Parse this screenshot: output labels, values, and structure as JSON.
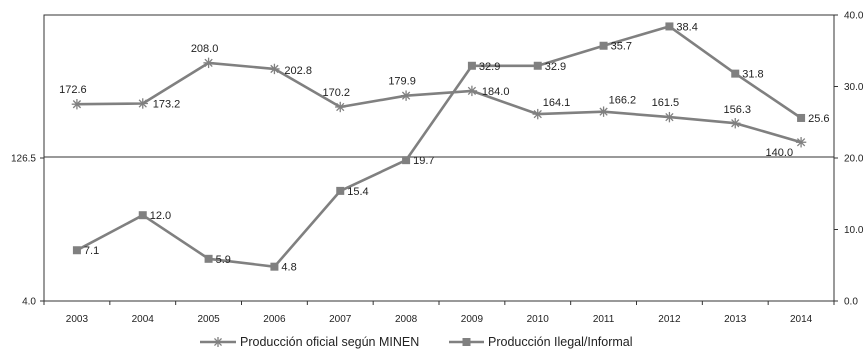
{
  "chart_data": {
    "type": "line",
    "title": "",
    "xlabel": "",
    "ylabel": "",
    "categories": [
      "2003",
      "2004",
      "2005",
      "2006",
      "2007",
      "2008",
      "2009",
      "2010",
      "2011",
      "2012",
      "2013",
      "2014"
    ],
    "y_left": {
      "ylim": [
        4.0,
        249.0
      ],
      "ticks": [
        "4.0",
        "126.5"
      ]
    },
    "y_right": {
      "ylim": [
        0,
        40
      ],
      "ticks": [
        "0.0",
        "10.0",
        "20.0",
        "30.0",
        "40.0"
      ]
    },
    "grid": false,
    "legend_position": "bottom",
    "series": [
      {
        "name": "Producción oficial según MINEN",
        "axis": "left",
        "marker": "asterisk",
        "color": "#808080",
        "values": [
          172.6,
          173.2,
          208.0,
          202.8,
          170.2,
          179.9,
          184.0,
          164.1,
          166.2,
          161.5,
          156.3,
          140.0
        ],
        "labels": [
          "172.6",
          "173.2",
          "208.0",
          "202.8",
          "170.2",
          "179.9",
          "184.0",
          "164.1",
          "166.2",
          "161.5",
          "156.3",
          "140.0"
        ]
      },
      {
        "name": "Producción Ilegal/Informal",
        "axis": "right",
        "marker": "square",
        "color": "#808080",
        "values": [
          7.1,
          12.0,
          5.9,
          4.8,
          15.4,
          19.7,
          32.9,
          32.9,
          35.7,
          38.4,
          31.8,
          25.6
        ],
        "labels": [
          "7.1",
          "12.0",
          "5.9",
          "4.8",
          "15.4",
          "19.7",
          "32.9",
          "32.9",
          "35.7",
          "38.4",
          "31.8",
          "25.6"
        ]
      }
    ]
  }
}
